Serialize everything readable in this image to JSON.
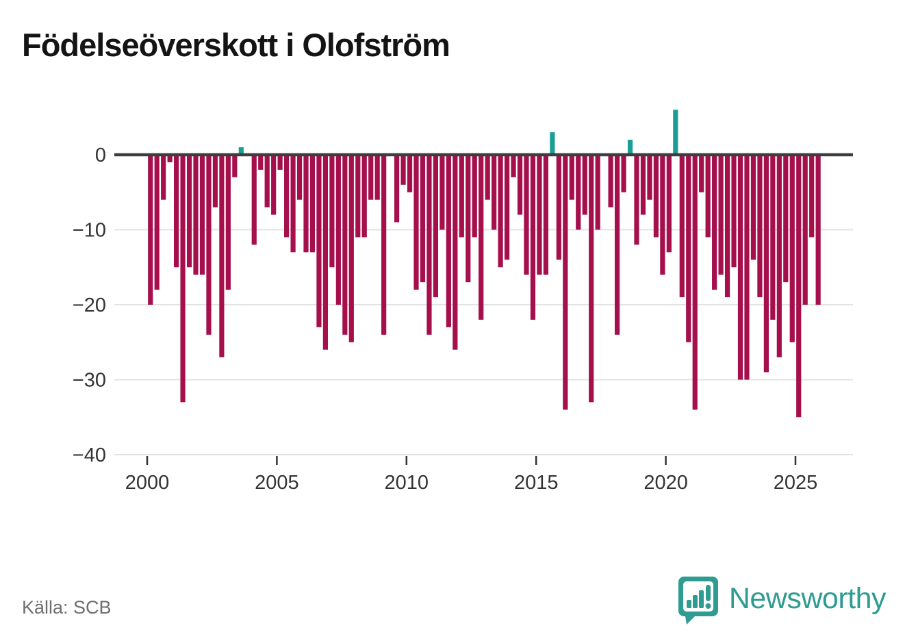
{
  "title": "Födelseöverskott i Olofström",
  "source": "Källa: SCB",
  "branding": {
    "name": "Newsworthy",
    "logo_icon": "bar-chart-speech-bubble"
  },
  "colors": {
    "negative_bar": "#a50f4c",
    "positive_bar": "#1b9e95",
    "zero_line": "#3d3d3d",
    "gridline": "#e3e3e3",
    "axis_text": "#333333",
    "title_text": "#141414",
    "source_text": "#6f6f6f",
    "brand_teal": "#2f9c91"
  },
  "chart_data": {
    "type": "bar",
    "title": "Födelseöverskott i Olofström",
    "xlabel": "",
    "ylabel": "",
    "frequency": "quarterly",
    "legend": "none",
    "grid": "horizontal",
    "ylim": [
      -40,
      8
    ],
    "y_ticks": [
      0,
      -10,
      -20,
      -30,
      -40
    ],
    "y_tick_labels": [
      "0",
      "−10",
      "−20",
      "−30",
      "−40"
    ],
    "x_tick_years": [
      2000,
      2005,
      2010,
      2015,
      2020,
      2025
    ],
    "x_tick_labels": [
      "2000",
      "2005",
      "2010",
      "2015",
      "2020",
      "2025"
    ],
    "values_by_year": {
      "2000": [
        -20,
        -18,
        -6,
        -1
      ],
      "2001": [
        -15,
        -33,
        -15,
        -16
      ],
      "2002": [
        -16,
        -24,
        -7,
        -27
      ],
      "2003": [
        -18,
        -3,
        1,
        0
      ],
      "2004": [
        -12,
        -2,
        -7,
        -8
      ],
      "2005": [
        -2,
        -11,
        -13,
        -6
      ],
      "2006": [
        -13,
        -13,
        -23,
        -26
      ],
      "2007": [
        -15,
        -20,
        -24,
        -25
      ],
      "2008": [
        -11,
        -11,
        -6,
        -6
      ],
      "2009": [
        -24,
        0,
        -9,
        -4
      ],
      "2010": [
        -5,
        -18,
        -17,
        -24
      ],
      "2011": [
        -19,
        -10,
        -23,
        -26
      ],
      "2012": [
        -11,
        -17,
        -11,
        -22
      ],
      "2013": [
        -6,
        -10,
        -15,
        -14
      ],
      "2014": [
        -3,
        -8,
        -16,
        -22
      ],
      "2015": [
        -16,
        -16,
        3,
        -14
      ],
      "2016": [
        -34,
        -6,
        -10,
        -8
      ],
      "2017": [
        -33,
        -10,
        0,
        -7
      ],
      "2018": [
        -24,
        -5,
        2,
        -12
      ],
      "2019": [
        -8,
        -6,
        -11,
        -16
      ],
      "2020": [
        -13,
        6,
        -19,
        -25
      ],
      "2021": [
        -34,
        -5,
        -11,
        -18
      ],
      "2022": [
        -16,
        -19,
        -15,
        -30
      ],
      "2023": [
        -30,
        -14,
        -19,
        -29
      ],
      "2024": [
        -22,
        -27,
        -17,
        -25
      ],
      "2025": [
        -35,
        -20,
        -11,
        -20
      ]
    }
  }
}
